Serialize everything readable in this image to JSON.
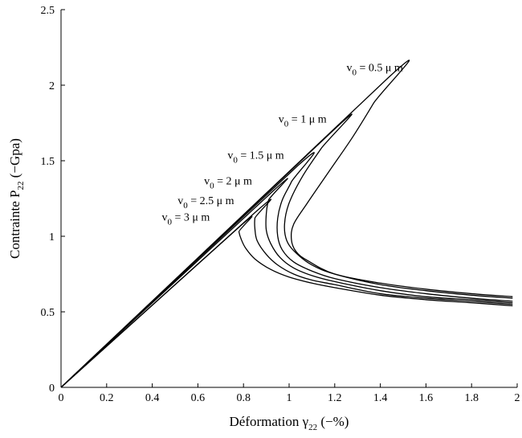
{
  "chart_data": {
    "type": "line",
    "title": "",
    "xlabel": {
      "main": "Déformation γ",
      "sub": "22",
      "unit": " (−%)"
    },
    "ylabel": {
      "main": "Contrainte P",
      "sub": "22",
      "unit": "  (−Gpa)"
    },
    "xlim": [
      0,
      2
    ],
    "ylim": [
      0,
      2.5
    ],
    "xticks": [
      "0",
      "0.2",
      "0.4",
      "0.6",
      "0.8",
      "1",
      "1.2",
      "1.4",
      "1.6",
      "1.8",
      "2"
    ],
    "yticks": [
      "0",
      "0.5",
      "1",
      "1.5",
      "2",
      "2.5"
    ],
    "xtick_values": [
      0,
      0.2,
      0.4,
      0.6,
      0.8,
      1.0,
      1.2,
      1.4,
      1.6,
      1.8,
      2.0
    ],
    "ytick_values": [
      0,
      0.5,
      1.0,
      1.5,
      2.0,
      2.5
    ],
    "grid": false,
    "series": [
      {
        "name": "v0 = 0.5 μ m",
        "label": {
          "pre": "v",
          "sub": "0",
          "post": " = 0.5 μ m"
        },
        "x": [
          0,
          1.435,
          1.37,
          1.28,
          1.18,
          1.08,
          1.02,
          1.01,
          1.03,
          1.08,
          1.2,
          1.4,
          1.6,
          1.8,
          1.98
        ],
        "y": [
          0,
          2.05,
          1.88,
          1.66,
          1.44,
          1.22,
          1.08,
          0.98,
          0.9,
          0.84,
          0.75,
          0.69,
          0.65,
          0.62,
          0.6
        ]
      },
      {
        "name": "v0 = 1 μ m",
        "label": {
          "pre": "v",
          "sub": "0",
          "post": " = 1 μ m"
        },
        "x": [
          0,
          1.2,
          1.14,
          1.06,
          1.0,
          0.98,
          0.99,
          1.03,
          1.1,
          1.2,
          1.4,
          1.6,
          1.8,
          1.98
        ],
        "y": [
          0,
          1.71,
          1.58,
          1.4,
          1.22,
          1.08,
          0.97,
          0.89,
          0.81,
          0.75,
          0.68,
          0.64,
          0.61,
          0.59
        ]
      },
      {
        "name": "v0 = 1.5 μ m",
        "label": {
          "pre": "v",
          "sub": "0",
          "post": " = 1.5 μ m"
        },
        "x": [
          0,
          1.04,
          1.01,
          0.97,
          0.95,
          0.95,
          0.97,
          1.02,
          1.1,
          1.2,
          1.4,
          1.6,
          1.8,
          1.98
        ],
        "y": [
          0,
          1.47,
          1.36,
          1.24,
          1.12,
          1.0,
          0.91,
          0.83,
          0.77,
          0.72,
          0.66,
          0.62,
          0.59,
          0.57
        ]
      },
      {
        "name": "v0 = 2 μ m",
        "label": {
          "pre": "v",
          "sub": "0",
          "post": " = 2 μ m"
        },
        "x": [
          0,
          0.93,
          0.91,
          0.9,
          0.9,
          0.92,
          0.96,
          1.02,
          1.1,
          1.2,
          1.4,
          1.6,
          1.8,
          1.98
        ],
        "y": [
          0,
          1.3,
          1.24,
          1.15,
          1.04,
          0.95,
          0.86,
          0.79,
          0.74,
          0.7,
          0.64,
          0.6,
          0.58,
          0.56
        ]
      },
      {
        "name": "v0 = 2.5 μ m",
        "label": {
          "pre": "v",
          "sub": "0",
          "post": " = 2.5 μ m"
        },
        "x": [
          0,
          0.86,
          0.85,
          0.85,
          0.86,
          0.9,
          0.95,
          1.02,
          1.1,
          1.2,
          1.4,
          1.6,
          1.8,
          1.98
        ],
        "y": [
          0,
          1.17,
          1.12,
          1.05,
          0.97,
          0.88,
          0.81,
          0.75,
          0.71,
          0.68,
          0.62,
          0.59,
          0.57,
          0.55
        ]
      },
      {
        "name": "v0 = 3 μ m",
        "label": {
          "pre": "v",
          "sub": "0",
          "post": " = 3 μ m"
        },
        "x": [
          0,
          0.78,
          0.78,
          0.79,
          0.81,
          0.85,
          0.92,
          1.0,
          1.1,
          1.2,
          1.4,
          1.6,
          1.8,
          1.98
        ],
        "y": [
          0,
          1.06,
          1.03,
          0.98,
          0.92,
          0.85,
          0.78,
          0.73,
          0.69,
          0.66,
          0.61,
          0.58,
          0.56,
          0.54
        ]
      }
    ]
  }
}
